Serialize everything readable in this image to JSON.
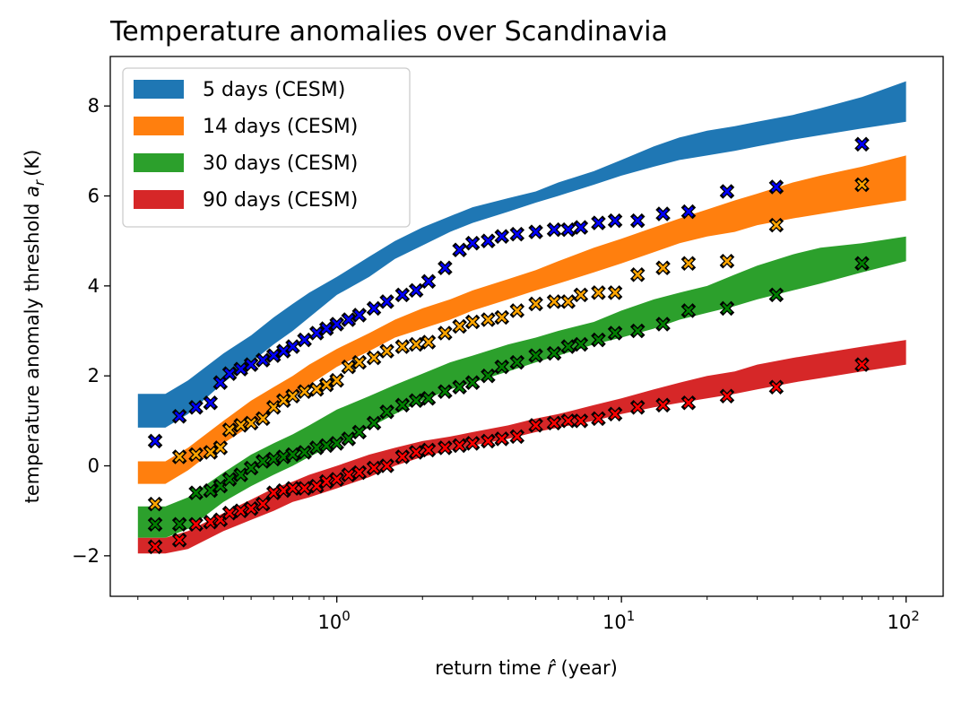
{
  "chart_data": {
    "type": "area",
    "title": "Temperature anomalies over Scandinavia",
    "xlabel": "return time",
    "xlabel_symbol": "r̂",
    "xlabel_unit": "(year)",
    "ylabel": "temperature anomaly threshold",
    "ylabel_symbol": "a",
    "ylabel_subscript": "r",
    "ylabel_unit": "(K)",
    "xscale": "log",
    "xlim": [
      0.16,
      135
    ],
    "ylim": [
      -2.9,
      9.1
    ],
    "yticks": [
      -2,
      0,
      2,
      4,
      6,
      8
    ],
    "yticklabels": [
      "−2",
      "0",
      "2",
      "4",
      "6",
      "8"
    ],
    "xticks": [
      1,
      10,
      100
    ],
    "xtick_base": "10",
    "xtick_exponents": [
      "0",
      "1",
      "2"
    ],
    "legend_position": "upper-left",
    "band_x": [
      0.2,
      0.25,
      0.3,
      0.4,
      0.5,
      0.6,
      0.7,
      0.8,
      1,
      1.3,
      1.6,
      2,
      2.5,
      3,
      4,
      5,
      6,
      8,
      10,
      13,
      16,
      20,
      25,
      30,
      40,
      50,
      70,
      100
    ],
    "series": [
      {
        "name": "5 days (CESM)",
        "color": "#1f77b4",
        "lower": [
          0.85,
          0.85,
          1.15,
          1.85,
          2.3,
          2.7,
          3.0,
          3.3,
          3.8,
          4.2,
          4.6,
          4.9,
          5.2,
          5.4,
          5.65,
          5.85,
          6.0,
          6.25,
          6.45,
          6.65,
          6.8,
          6.9,
          7.0,
          7.1,
          7.25,
          7.35,
          7.5,
          7.65
        ],
        "upper": [
          1.6,
          1.6,
          1.9,
          2.5,
          2.9,
          3.3,
          3.6,
          3.85,
          4.2,
          4.65,
          5.0,
          5.3,
          5.55,
          5.75,
          5.95,
          6.1,
          6.3,
          6.55,
          6.8,
          7.1,
          7.3,
          7.45,
          7.55,
          7.65,
          7.8,
          7.95,
          8.2,
          8.55
        ]
      },
      {
        "name": "14 days (CESM)",
        "color": "#ff7f0e",
        "lower": [
          -0.4,
          -0.4,
          -0.1,
          0.5,
          0.9,
          1.25,
          1.5,
          1.8,
          2.2,
          2.55,
          2.85,
          3.05,
          3.25,
          3.45,
          3.7,
          3.9,
          4.05,
          4.3,
          4.5,
          4.75,
          4.95,
          5.1,
          5.2,
          5.35,
          5.5,
          5.6,
          5.75,
          5.9
        ],
        "upper": [
          0.1,
          0.1,
          0.4,
          1.0,
          1.45,
          1.75,
          2.0,
          2.25,
          2.6,
          2.95,
          3.25,
          3.5,
          3.7,
          3.9,
          4.15,
          4.35,
          4.55,
          4.85,
          5.05,
          5.3,
          5.5,
          5.7,
          5.9,
          6.05,
          6.3,
          6.45,
          6.65,
          6.9
        ]
      },
      {
        "name": "30 days (CESM)",
        "color": "#2ca02c",
        "lower": [
          -1.6,
          -1.6,
          -1.4,
          -0.8,
          -0.45,
          -0.2,
          0.0,
          0.2,
          0.5,
          0.85,
          1.15,
          1.45,
          1.7,
          1.85,
          2.1,
          2.3,
          2.45,
          2.7,
          2.85,
          3.05,
          3.25,
          3.4,
          3.55,
          3.7,
          3.9,
          4.05,
          4.3,
          4.55
        ],
        "upper": [
          -0.9,
          -0.9,
          -0.7,
          -0.15,
          0.25,
          0.5,
          0.7,
          0.9,
          1.25,
          1.55,
          1.8,
          2.05,
          2.3,
          2.45,
          2.7,
          2.85,
          3.0,
          3.2,
          3.45,
          3.7,
          3.85,
          4.0,
          4.25,
          4.45,
          4.7,
          4.85,
          4.95,
          5.1
        ]
      },
      {
        "name": "90 days (CESM)",
        "color": "#d62728",
        "lower": [
          -1.95,
          -1.95,
          -1.85,
          -1.45,
          -1.2,
          -1.0,
          -0.8,
          -0.7,
          -0.5,
          -0.25,
          0.0,
          0.2,
          0.35,
          0.45,
          0.6,
          0.75,
          0.85,
          1.0,
          1.15,
          1.3,
          1.4,
          1.5,
          1.6,
          1.7,
          1.85,
          1.95,
          2.1,
          2.25
        ],
        "upper": [
          -1.6,
          -1.6,
          -1.45,
          -1.05,
          -0.75,
          -0.5,
          -0.35,
          -0.2,
          0.0,
          0.25,
          0.4,
          0.55,
          0.65,
          0.75,
          0.9,
          1.05,
          1.15,
          1.35,
          1.5,
          1.7,
          1.85,
          2.0,
          2.1,
          2.25,
          2.4,
          2.5,
          2.65,
          2.8
        ]
      }
    ],
    "observations": [
      {
        "series": "5 days",
        "color": "#0000ff",
        "x": [
          0.23,
          0.28,
          0.32,
          0.36,
          0.39,
          0.42,
          0.46,
          0.5,
          0.55,
          0.6,
          0.65,
          0.7,
          0.77,
          0.85,
          0.92,
          1.0,
          1.1,
          1.2,
          1.35,
          1.5,
          1.7,
          1.9,
          2.1,
          2.4,
          2.7,
          3.0,
          3.4,
          3.8,
          4.3,
          5.0,
          5.8,
          6.5,
          7.2,
          8.3,
          9.5,
          11.4,
          14,
          17.2,
          23.5,
          35,
          70
        ],
        "y": [
          0.55,
          1.1,
          1.3,
          1.4,
          1.85,
          2.05,
          2.15,
          2.25,
          2.35,
          2.45,
          2.55,
          2.65,
          2.8,
          2.95,
          3.05,
          3.15,
          3.25,
          3.35,
          3.5,
          3.65,
          3.8,
          3.9,
          4.1,
          4.4,
          4.8,
          4.95,
          5.0,
          5.1,
          5.15,
          5.2,
          5.25,
          5.25,
          5.3,
          5.4,
          5.45,
          5.45,
          5.6,
          5.65,
          6.1,
          6.2,
          7.15
        ]
      },
      {
        "series": "14 days",
        "color": "#ffa500",
        "x": [
          0.23,
          0.28,
          0.32,
          0.36,
          0.39,
          0.42,
          0.46,
          0.5,
          0.55,
          0.6,
          0.65,
          0.7,
          0.77,
          0.85,
          0.92,
          1.0,
          1.1,
          1.2,
          1.35,
          1.5,
          1.7,
          1.9,
          2.1,
          2.4,
          2.7,
          3.0,
          3.4,
          3.8,
          4.3,
          5.0,
          5.8,
          6.5,
          7.2,
          8.3,
          9.5,
          11.4,
          14,
          17.2,
          23.5,
          35,
          70
        ],
        "y": [
          -0.85,
          0.2,
          0.25,
          0.3,
          0.4,
          0.8,
          0.9,
          0.95,
          1.05,
          1.3,
          1.45,
          1.55,
          1.65,
          1.7,
          1.8,
          1.9,
          2.2,
          2.3,
          2.4,
          2.55,
          2.65,
          2.7,
          2.75,
          2.95,
          3.1,
          3.2,
          3.25,
          3.3,
          3.45,
          3.6,
          3.65,
          3.65,
          3.8,
          3.85,
          3.85,
          4.25,
          4.4,
          4.5,
          4.55,
          5.35,
          6.25
        ]
      },
      {
        "series": "30 days",
        "color": "#008000",
        "x": [
          0.23,
          0.28,
          0.32,
          0.36,
          0.39,
          0.42,
          0.46,
          0.5,
          0.55,
          0.6,
          0.65,
          0.7,
          0.77,
          0.85,
          0.92,
          1.0,
          1.1,
          1.2,
          1.35,
          1.5,
          1.7,
          1.9,
          2.1,
          2.4,
          2.7,
          3.0,
          3.4,
          3.8,
          4.3,
          5.0,
          5.8,
          6.5,
          7.2,
          8.3,
          9.5,
          11.4,
          14,
          17.2,
          23.5,
          35,
          70
        ],
        "y": [
          -1.3,
          -1.3,
          -0.6,
          -0.55,
          -0.45,
          -0.3,
          -0.2,
          -0.05,
          0.1,
          0.15,
          0.2,
          0.25,
          0.3,
          0.4,
          0.45,
          0.5,
          0.6,
          0.75,
          0.95,
          1.2,
          1.35,
          1.45,
          1.5,
          1.65,
          1.75,
          1.85,
          2.0,
          2.2,
          2.3,
          2.45,
          2.5,
          2.65,
          2.7,
          2.8,
          2.95,
          3.0,
          3.15,
          3.45,
          3.5,
          3.8,
          4.5
        ]
      },
      {
        "series": "90 days",
        "color": "#ff0000",
        "x": [
          0.23,
          0.28,
          0.32,
          0.36,
          0.39,
          0.42,
          0.46,
          0.5,
          0.55,
          0.6,
          0.65,
          0.7,
          0.77,
          0.85,
          0.92,
          1.0,
          1.1,
          1.2,
          1.35,
          1.5,
          1.7,
          1.9,
          2.1,
          2.4,
          2.7,
          3.0,
          3.4,
          3.8,
          4.3,
          5.0,
          5.8,
          6.5,
          7.2,
          8.3,
          9.5,
          11.4,
          14,
          17.2,
          23.5,
          35,
          70
        ],
        "y": [
          -1.8,
          -1.65,
          -1.3,
          -1.25,
          -1.2,
          -1.05,
          -1.0,
          -0.95,
          -0.85,
          -0.6,
          -0.55,
          -0.5,
          -0.5,
          -0.45,
          -0.35,
          -0.3,
          -0.2,
          -0.15,
          -0.05,
          0.0,
          0.2,
          0.3,
          0.35,
          0.4,
          0.45,
          0.5,
          0.55,
          0.6,
          0.65,
          0.9,
          0.95,
          1.0,
          1.0,
          1.05,
          1.15,
          1.3,
          1.35,
          1.4,
          1.55,
          1.75,
          2.25
        ]
      }
    ]
  }
}
